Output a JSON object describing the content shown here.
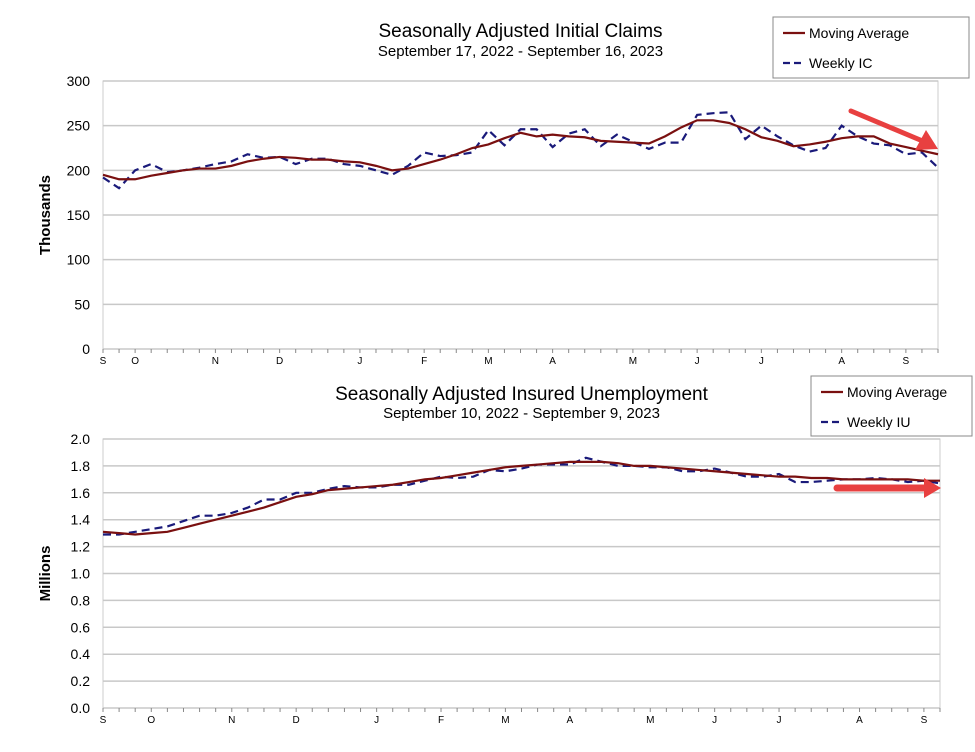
{
  "chart_data": [
    {
      "type": "line",
      "title": "Seasonally Adjusted Initial Claims",
      "subtitle": "September 17, 2022 - September 16, 2023",
      "ylabel": "Thousands",
      "xlabel": "",
      "ylim": [
        0,
        300
      ],
      "yticks": [
        0,
        50,
        100,
        150,
        200,
        250,
        300
      ],
      "grid": true,
      "legend": "top-right",
      "month_ticks": [
        {
          "label": "S",
          "week": 0
        },
        {
          "label": "O",
          "week": 2
        },
        {
          "label": "N",
          "week": 7
        },
        {
          "label": "D",
          "week": 11
        },
        {
          "label": "J",
          "week": 16
        },
        {
          "label": "F",
          "week": 20
        },
        {
          "label": "M",
          "week": 24
        },
        {
          "label": "A",
          "week": 28
        },
        {
          "label": "M",
          "week": 33
        },
        {
          "label": "J",
          "week": 37
        },
        {
          "label": "J",
          "week": 41
        },
        {
          "label": "A",
          "week": 46
        },
        {
          "label": "S",
          "week": 50
        }
      ],
      "series": [
        {
          "name": "Moving Average",
          "color": "#7a1010",
          "style": "solid",
          "values": [
            195,
            190,
            190,
            194,
            197,
            200,
            202,
            202,
            205,
            210,
            213,
            215,
            214,
            212,
            212,
            210,
            209,
            205,
            200,
            202,
            207,
            212,
            218,
            225,
            229,
            236,
            242,
            238,
            240,
            238,
            237,
            233,
            232,
            231,
            230,
            238,
            248,
            256,
            256,
            253,
            246,
            237,
            233,
            227,
            229,
            232,
            236,
            238,
            238,
            230,
            226,
            222,
            218
          ]
        },
        {
          "name": "Weekly IC",
          "color": "#1a1a7a",
          "style": "dashed",
          "values": [
            192,
            180,
            200,
            207,
            198,
            200,
            203,
            207,
            210,
            218,
            214,
            215,
            207,
            213,
            213,
            207,
            205,
            200,
            195,
            205,
            220,
            216,
            217,
            220,
            245,
            228,
            246,
            246,
            226,
            241,
            246,
            227,
            240,
            232,
            224,
            231,
            231,
            262,
            264,
            265,
            235,
            250,
            238,
            228,
            221,
            225,
            250,
            238,
            230,
            228,
            218,
            220,
            203
          ]
        }
      ],
      "annotation": {
        "type": "arrow",
        "direction": "down",
        "color": "#e84040"
      }
    },
    {
      "type": "line",
      "title": "Seasonally Adjusted Insured Unemployment",
      "subtitle": "September 10, 2022 - September 9, 2023",
      "ylabel": "Millions",
      "xlabel": "",
      "ylim": [
        0,
        2.0
      ],
      "yticks": [
        "0.0",
        "0.2",
        "0.4",
        "0.6",
        "0.8",
        "1.0",
        "1.2",
        "1.4",
        "1.6",
        "1.8",
        "2.0"
      ],
      "grid": true,
      "legend": "top-right",
      "month_ticks": [
        {
          "label": "S",
          "week": 0
        },
        {
          "label": "O",
          "week": 3
        },
        {
          "label": "N",
          "week": 8
        },
        {
          "label": "D",
          "week": 12
        },
        {
          "label": "J",
          "week": 17
        },
        {
          "label": "F",
          "week": 21
        },
        {
          "label": "M",
          "week": 25
        },
        {
          "label": "A",
          "week": 29
        },
        {
          "label": "M",
          "week": 34
        },
        {
          "label": "J",
          "week": 38
        },
        {
          "label": "J",
          "week": 42
        },
        {
          "label": "A",
          "week": 47
        },
        {
          "label": "S",
          "week": 51
        }
      ],
      "series": [
        {
          "name": "Moving Average",
          "color": "#7a1010",
          "style": "solid",
          "values": [
            1.31,
            1.3,
            1.29,
            1.3,
            1.31,
            1.34,
            1.37,
            1.4,
            1.43,
            1.46,
            1.49,
            1.53,
            1.57,
            1.59,
            1.62,
            1.63,
            1.64,
            1.65,
            1.66,
            1.68,
            1.7,
            1.71,
            1.73,
            1.75,
            1.77,
            1.79,
            1.8,
            1.81,
            1.82,
            1.83,
            1.83,
            1.83,
            1.82,
            1.8,
            1.8,
            1.79,
            1.78,
            1.77,
            1.76,
            1.75,
            1.74,
            1.73,
            1.72,
            1.72,
            1.71,
            1.71,
            1.7,
            1.7,
            1.7,
            1.7,
            1.7,
            1.69,
            1.69
          ]
        },
        {
          "name": "Weekly IU",
          "color": "#1a1a7a",
          "style": "dashed",
          "values": [
            1.29,
            1.29,
            1.31,
            1.33,
            1.35,
            1.39,
            1.43,
            1.43,
            1.45,
            1.49,
            1.55,
            1.55,
            1.6,
            1.6,
            1.63,
            1.65,
            1.64,
            1.64,
            1.66,
            1.66,
            1.69,
            1.72,
            1.71,
            1.72,
            1.77,
            1.76,
            1.78,
            1.81,
            1.81,
            1.81,
            1.86,
            1.83,
            1.8,
            1.8,
            1.79,
            1.79,
            1.76,
            1.76,
            1.78,
            1.75,
            1.72,
            1.72,
            1.74,
            1.68,
            1.68,
            1.69,
            1.7,
            1.7,
            1.71,
            1.7,
            1.68,
            1.69,
            1.67
          ]
        }
      ],
      "annotation": {
        "type": "arrow",
        "direction": "right",
        "color": "#e84040"
      }
    }
  ]
}
